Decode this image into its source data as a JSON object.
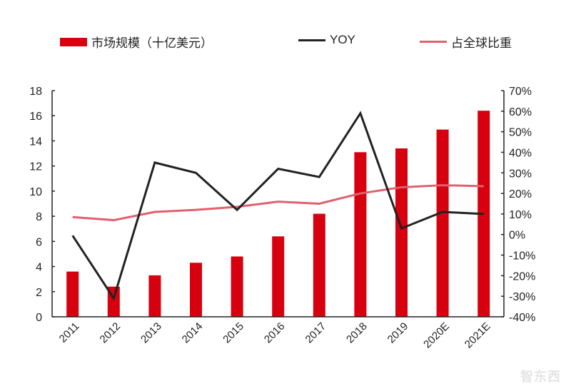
{
  "chart_data": {
    "type": "bar+line",
    "categories": [
      "2011",
      "2012",
      "2013",
      "2014",
      "2015",
      "2016",
      "2017",
      "2018",
      "2019",
      "2020E",
      "2021E"
    ],
    "series": [
      {
        "name": "市场规模（十亿美元）",
        "type": "bar",
        "axis": "left",
        "color": "#d7000f",
        "values": [
          3.6,
          2.4,
          3.3,
          4.3,
          4.8,
          6.4,
          8.2,
          13.1,
          13.4,
          14.9,
          16.4
        ]
      },
      {
        "name": "YOY",
        "type": "line",
        "axis": "right",
        "color": "#222222",
        "values": [
          -0.5,
          -31,
          35,
          30,
          12,
          32,
          28,
          59,
          3,
          11,
          10
        ]
      },
      {
        "name": "占全球比重",
        "type": "line",
        "axis": "right",
        "color": "#e0606e",
        "values": [
          8.5,
          7,
          11,
          12,
          13.5,
          16,
          15,
          20,
          23,
          24,
          23.5
        ]
      }
    ],
    "left_axis": {
      "ylim": [
        0,
        18
      ],
      "ticks": [
        "0",
        "2",
        "4",
        "6",
        "8",
        "10",
        "12",
        "14",
        "16",
        "18"
      ]
    },
    "right_axis": {
      "ylim": [
        -40,
        70
      ],
      "ticks": [
        "-40%",
        "-30%",
        "-20%",
        "-10%",
        "0%",
        "10%",
        "20%",
        "30%",
        "40%",
        "50%",
        "60%",
        "70%"
      ]
    },
    "legend_placement": "top",
    "grid": false
  },
  "watermark": "智东西"
}
